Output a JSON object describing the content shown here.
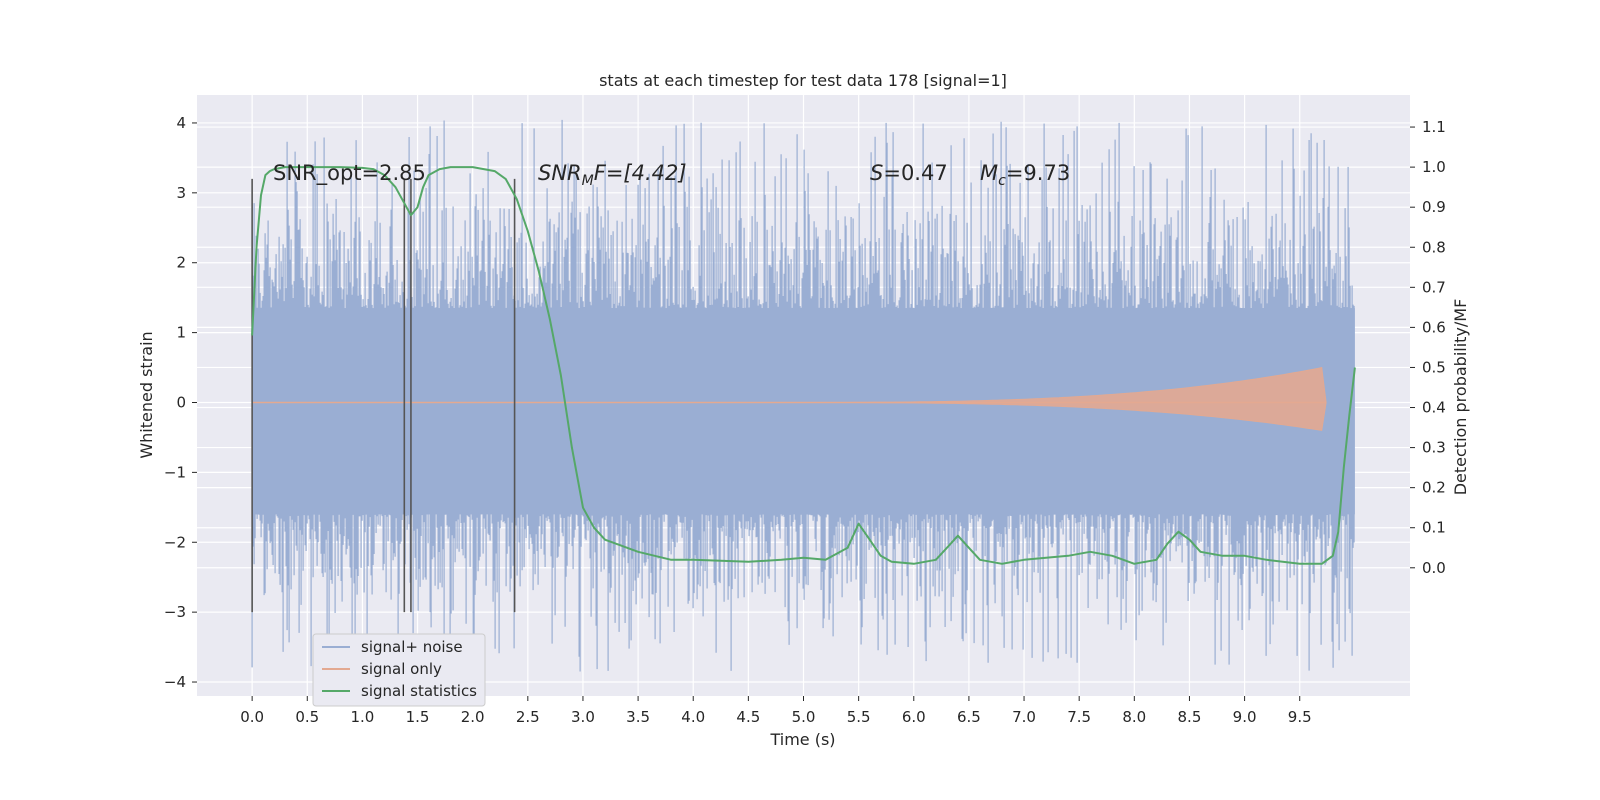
{
  "chart_data": {
    "type": "line",
    "title": "stats at each timestep for test data 178 [signal=1]",
    "xlabel": "Time (s)",
    "ylabel_left": "Whitened strain",
    "ylabel_right": "Detection probability/MF",
    "xlim": [
      -0.5,
      10.5
    ],
    "ylim_left": [
      -4.2,
      4.4
    ],
    "ylim_right": [
      -0.32,
      1.18
    ],
    "x_ticks": [
      0.0,
      0.5,
      1.0,
      1.5,
      2.0,
      2.5,
      3.0,
      3.5,
      4.0,
      4.5,
      5.0,
      5.5,
      6.0,
      6.5,
      7.0,
      7.5,
      8.0,
      8.5,
      9.0,
      9.5
    ],
    "x_tick_labels": [
      "0.0",
      "0.5",
      "1.0",
      "1.5",
      "2.0",
      "2.5",
      "3.0",
      "3.5",
      "4.0",
      "4.5",
      "5.0",
      "5.5",
      "6.0",
      "6.5",
      "7.0",
      "7.5",
      "8.0",
      "8.5",
      "9.0",
      "9.5"
    ],
    "y_left_ticks": [
      -4,
      -3,
      -2,
      -1,
      0,
      1,
      2,
      3,
      4
    ],
    "y_left_tick_labels": [
      "−4",
      "−3",
      "−2",
      "−1",
      "0",
      "1",
      "2",
      "3",
      "4"
    ],
    "y_right_ticks": [
      0.0,
      0.1,
      0.2,
      0.3,
      0.4,
      0.5,
      0.6,
      0.7,
      0.8,
      0.9,
      1.0,
      1.1
    ],
    "y_right_tick_labels": [
      "0.0",
      "0.1",
      "0.2",
      "0.3",
      "0.4",
      "0.5",
      "0.6",
      "0.7",
      "0.8",
      "0.9",
      "1.0",
      "1.1"
    ],
    "grid": true,
    "legend_position": "bottom-left",
    "annotations": {
      "snr_opt": "SNR_opt=2.85",
      "snr_mf_base": "SNR",
      "snr_mf_sub": "M",
      "snr_mf_rest": "F=[4.42]",
      "s_var": "S",
      "s_val": "=0.47",
      "mc_var": "M",
      "mc_sub": "c",
      "mc_val": "=9.73"
    },
    "vertical_markers": {
      "x": [
        0.0,
        1.38,
        1.44,
        2.38
      ],
      "y_range": [
        -3.0,
        3.2
      ]
    },
    "series": [
      {
        "name": "signal+ noise",
        "axis": "left",
        "color": "#9aaed3",
        "x_range": [
          0.0,
          10.0
        ],
        "approx_band": [
          -1.6,
          1.35
        ],
        "approx_extremes": [
          -3.85,
          4.05
        ]
      },
      {
        "name": "signal only",
        "axis": "left",
        "color": "#e3a991",
        "chirp": {
          "t_start": 4.5,
          "t_merge": 9.7,
          "t_end": 9.74,
          "peak_amp_upper": 0.5,
          "peak_amp_lower": 0.4
        }
      },
      {
        "name": "signal statistics",
        "axis": "right",
        "color": "#55a868",
        "x": [
          0.0,
          0.04,
          0.08,
          0.12,
          0.16,
          0.2,
          0.3,
          0.5,
          0.8,
          1.0,
          1.1,
          1.2,
          1.3,
          1.4,
          1.44,
          1.5,
          1.55,
          1.6,
          1.7,
          1.8,
          2.0,
          2.2,
          2.3,
          2.4,
          2.5,
          2.6,
          2.7,
          2.8,
          2.9,
          3.0,
          3.1,
          3.2,
          3.3,
          3.5,
          3.8,
          4.0,
          4.5,
          4.8,
          5.0,
          5.2,
          5.4,
          5.5,
          5.6,
          5.7,
          5.8,
          6.0,
          6.2,
          6.3,
          6.4,
          6.5,
          6.6,
          6.8,
          7.0,
          7.4,
          7.6,
          7.8,
          8.0,
          8.2,
          8.3,
          8.4,
          8.5,
          8.6,
          8.8,
          9.0,
          9.2,
          9.5,
          9.6,
          9.7,
          9.8,
          9.85,
          9.9,
          9.95,
          10.0
        ],
        "values": [
          0.58,
          0.8,
          0.93,
          0.98,
          0.99,
          0.995,
          1.0,
          1.0,
          1.0,
          0.998,
          0.995,
          0.98,
          0.95,
          0.9,
          0.88,
          0.9,
          0.95,
          0.98,
          0.995,
          1.0,
          1.0,
          0.99,
          0.97,
          0.92,
          0.84,
          0.74,
          0.62,
          0.48,
          0.3,
          0.15,
          0.1,
          0.07,
          0.06,
          0.04,
          0.02,
          0.02,
          0.015,
          0.02,
          0.025,
          0.02,
          0.05,
          0.11,
          0.07,
          0.03,
          0.015,
          0.01,
          0.02,
          0.05,
          0.08,
          0.05,
          0.02,
          0.01,
          0.02,
          0.03,
          0.04,
          0.03,
          0.01,
          0.02,
          0.06,
          0.09,
          0.07,
          0.04,
          0.03,
          0.03,
          0.02,
          0.01,
          0.01,
          0.01,
          0.03,
          0.09,
          0.25,
          0.38,
          0.5
        ]
      }
    ]
  }
}
